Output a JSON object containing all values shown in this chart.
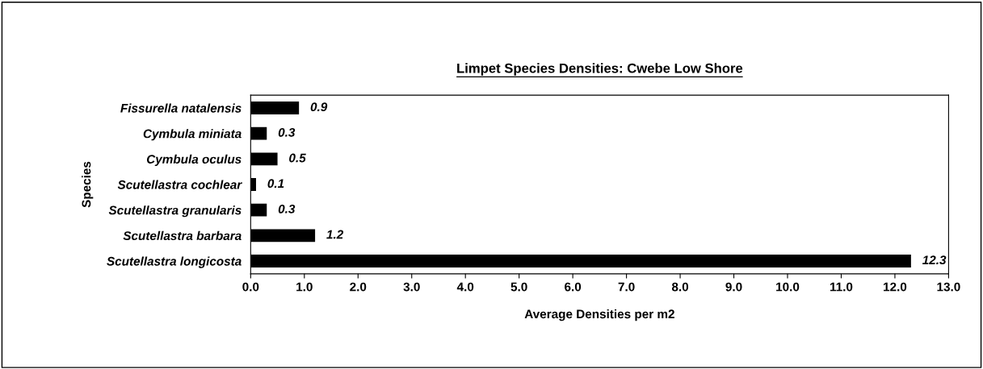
{
  "chart_data": {
    "type": "bar",
    "orientation": "horizontal",
    "title": "Limpet Species Densities: Cwebe Low Shore",
    "xlabel": "Average Densities per m2",
    "ylabel": "Species",
    "categories": [
      "Fissurella natalensis",
      "Cymbula miniata",
      "Cymbula oculus",
      "Scutellastra cochlear",
      "Scutellastra granularis",
      "Scutellastra barbara",
      "Scutellastra longicosta"
    ],
    "values": [
      0.9,
      0.3,
      0.5,
      0.1,
      0.3,
      1.2,
      12.3
    ],
    "color": "#000000",
    "data_labels": true,
    "grid": false,
    "xlim": [
      0,
      13
    ],
    "xticks": [
      {
        "value": 0,
        "label": "0.0"
      },
      {
        "value": 1,
        "label": "1.0"
      },
      {
        "value": 2,
        "label": "2.0"
      },
      {
        "value": 3,
        "label": "3.0"
      },
      {
        "value": 4,
        "label": "4.0"
      },
      {
        "value": 5,
        "label": "5.0"
      },
      {
        "value": 6,
        "label": "6.0"
      },
      {
        "value": 7,
        "label": "7.0"
      },
      {
        "value": 8,
        "label": "8.0"
      },
      {
        "value": 9,
        "label": "9.0"
      },
      {
        "value": 10,
        "label": "10.0"
      },
      {
        "value": 11,
        "label": "11.0"
      },
      {
        "value": 12,
        "label": "12.0"
      },
      {
        "value": 13,
        "label": "13.0"
      }
    ]
  }
}
